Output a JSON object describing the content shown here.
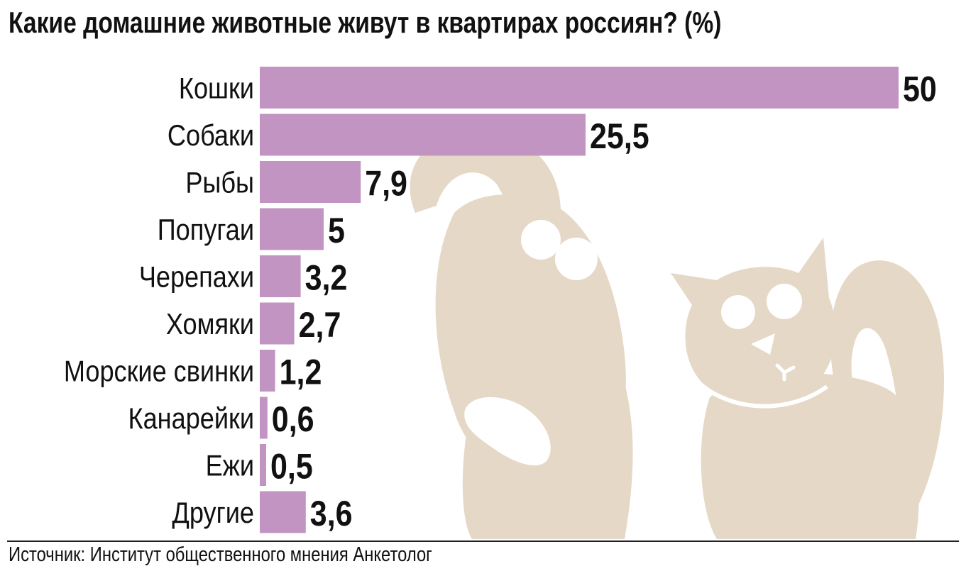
{
  "title": "Какие домашние животные живут в квартирах россиян? (%)",
  "source": "Источник: Институт общественного мнения Анкетолог",
  "colors": {
    "bar": "#c194c1",
    "illustration": "#e5d8c6"
  },
  "chart_data": {
    "type": "bar",
    "orientation": "horizontal",
    "title": "Какие домашние животные живут в квартирах россиян? (%)",
    "categories": [
      "Кошки",
      "Собаки",
      "Рыбы",
      "Попугаи",
      "Черепахи",
      "Хомяки",
      "Морские свинки",
      "Канарейки",
      "Ежи",
      "Другие"
    ],
    "values": [
      50,
      25.5,
      7.9,
      5,
      3.2,
      2.7,
      1.2,
      0.6,
      0.5,
      3.6
    ],
    "value_labels": [
      "50",
      "25,5",
      "7,9",
      "5",
      "3,2",
      "2,7",
      "1,2",
      "0,6",
      "0,5",
      "3,6"
    ],
    "xlim": [
      0,
      50
    ],
    "grid": false,
    "legend": "none"
  }
}
